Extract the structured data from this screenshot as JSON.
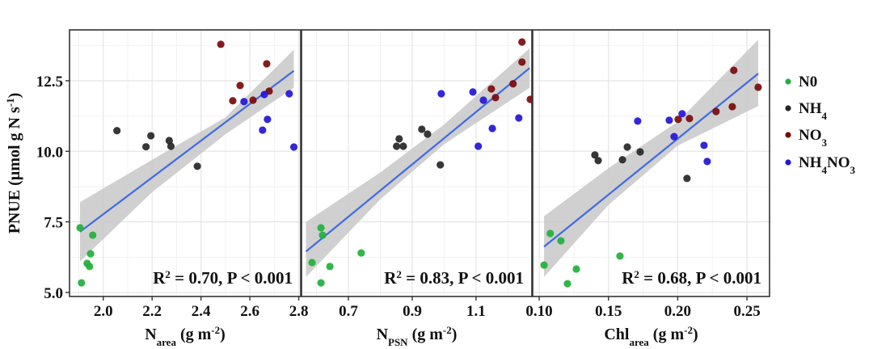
{
  "chart_data": {
    "type": "scatter",
    "ylabel": "PNUE (µmol g N s-1)",
    "ylabel_parts": {
      "main": "PNUE (µmol g N s",
      "sup": "-1",
      "end": ")"
    },
    "ylim": [
      4.857,
      14.3
    ],
    "yticks": [
      5.0,
      7.5,
      10.0,
      12.5
    ],
    "ytick_labels": [
      "5.0",
      "7.5",
      "10.0",
      "12.5"
    ],
    "grid": true,
    "legend_position": "right",
    "legend": [
      {
        "key": "N0",
        "label_main": "N0",
        "label_sub": "",
        "label_tail": "",
        "label_sub2": "",
        "color": "#22b03a"
      },
      {
        "key": "NH4",
        "label_main": "NH",
        "label_sub": "4",
        "label_tail": "",
        "label_sub2": "",
        "color": "#262626"
      },
      {
        "key": "NO3",
        "label_main": "NO",
        "label_sub": "3",
        "label_tail": "",
        "label_sub2": "",
        "color": "#7a0a0a"
      },
      {
        "key": "NH4NO3",
        "label_main": "NH",
        "label_sub": "4",
        "label_tail": "NO",
        "label_sub2": "3",
        "color": "#2414d8"
      }
    ],
    "fit_color": "#3d6be6",
    "band_color": "#c8c8c8",
    "panels": [
      {
        "xlabel": "Narea (g m-2)",
        "xlabel_parts": {
          "main": "N",
          "sub": "area",
          "rest": " (g m",
          "sup": "-2",
          "end": ")"
        },
        "xlim": [
          1.862,
          2.808
        ],
        "xticks": [
          2.0,
          2.2,
          2.4,
          2.6,
          2.8
        ],
        "xtick_labels": [
          "2.0",
          "2.2",
          "2.4",
          "2.6",
          "2.8"
        ],
        "annotation": {
          "r2_label": "R",
          "r2_sup": "2",
          "text": " = 0.70, P < 0.001"
        },
        "fit": {
          "x": [
            1.905,
            2.78
          ],
          "y": [
            7.15,
            12.85
          ]
        },
        "band": {
          "x": [
            1.905,
            2.2,
            2.5,
            2.78
          ],
          "lower": [
            6.1,
            8.55,
            10.6,
            12.25
          ],
          "upper": [
            8.2,
            9.7,
            11.2,
            13.6
          ]
        },
        "series": [
          {
            "name": "N0",
            "x": [
              1.905,
              1.957,
              1.948,
              1.934,
              1.944,
              1.911
            ],
            "y": [
              7.29,
              7.03,
              6.37,
              6.03,
              5.92,
              5.34
            ]
          },
          {
            "name": "NH4",
            "x": [
              2.056,
              2.175,
              2.195,
              2.27,
              2.277,
              2.385
            ],
            "y": [
              10.73,
              10.16,
              10.55,
              10.38,
              10.18,
              9.47
            ]
          },
          {
            "name": "NO3",
            "x": [
              2.481,
              2.56,
              2.53,
              2.613,
              2.669,
              2.679
            ],
            "y": [
              13.79,
              12.33,
              11.79,
              11.81,
              13.1,
              12.13
            ]
          },
          {
            "name": "NH4NO3",
            "x": [
              2.576,
              2.659,
              2.761,
              2.672,
              2.652,
              2.78
            ],
            "y": [
              11.76,
              12.01,
              12.04,
              11.13,
              10.75,
              10.15
            ]
          }
        ]
      },
      {
        "xlabel": "NPSN (g m-2)",
        "xlabel_parts": {
          "main": "N",
          "sub": "PSN",
          "rest": " (g m",
          "sup": "-2",
          "end": ")"
        },
        "xlim": [
          0.553,
          1.275
        ],
        "xticks": [
          0.7,
          0.9,
          1.1
        ],
        "xtick_labels": [
          "0.7",
          "0.9",
          "1.1"
        ],
        "annotation": {
          "r2_label": "R",
          "r2_sup": "2",
          "text": " = 0.83, P < 0.001"
        },
        "fit": {
          "x": [
            0.567,
            1.268
          ],
          "y": [
            6.45,
            12.95
          ]
        },
        "band": {
          "x": [
            0.567,
            0.8,
            1.0,
            1.268
          ],
          "lower": [
            5.55,
            8.3,
            10.25,
            12.25
          ],
          "upper": [
            7.5,
            9.25,
            10.95,
            13.65
          ]
        },
        "series": [
          {
            "name": "N0",
            "x": [
              0.586,
              0.614,
              0.619,
              0.642,
              0.614,
              0.74
            ],
            "y": [
              6.06,
              7.29,
              7.03,
              5.92,
              5.34,
              6.4
            ]
          },
          {
            "name": "NH4",
            "x": [
              0.859,
              0.851,
              0.872,
              0.93,
              0.948,
              0.988
            ],
            "y": [
              10.44,
              10.18,
              10.18,
              10.78,
              10.61,
              9.52
            ]
          },
          {
            "name": "NO3",
            "x": [
              1.244,
              1.244,
              1.216,
              1.148,
              1.161,
              1.27
            ],
            "y": [
              13.87,
              13.16,
              12.39,
              12.21,
              11.9,
              11.84
            ]
          },
          {
            "name": "NH4NO3",
            "x": [
              0.991,
              1.09,
              1.123,
              1.151,
              1.107,
              1.234
            ],
            "y": [
              12.04,
              12.1,
              11.81,
              10.81,
              10.18,
              11.18
            ]
          }
        ]
      },
      {
        "xlabel": "Chlarea (g m-2)",
        "xlabel_parts": {
          "main": "Chl",
          "sub": "area",
          "rest": " (g m",
          "sup": "-2",
          "end": ")"
        },
        "xlim": [
          0.0953,
          0.2663
        ],
        "xticks": [
          0.1,
          0.15,
          0.2,
          0.25
        ],
        "xtick_labels": [
          "0.10",
          "0.15",
          "0.20",
          "0.25"
        ],
        "annotation": {
          "r2_label": "R",
          "r2_sup": "2",
          "text": " = 0.68, P < 0.001"
        },
        "fit": {
          "x": [
            0.1035,
            0.2581
          ],
          "y": [
            6.62,
            12.75
          ]
        },
        "band": {
          "x": [
            0.1035,
            0.15,
            0.2,
            0.2581
          ],
          "lower": [
            5.55,
            8.1,
            10.2,
            11.6
          ],
          "upper": [
            7.7,
            9.4,
            11.05,
            13.95
          ]
        },
        "series": [
          {
            "name": "N0",
            "x": [
              0.1035,
              0.108,
              0.1157,
              0.1204,
              0.1268,
              0.1583
            ],
            "y": [
              5.97,
              7.09,
              6.83,
              5.31,
              5.83,
              6.29
            ]
          },
          {
            "name": "NH4",
            "x": [
              0.1402,
              0.1426,
              0.1601,
              0.1636,
              0.1729,
              0.2067
            ],
            "y": [
              9.87,
              9.67,
              9.7,
              10.15,
              9.98,
              9.04
            ]
          },
          {
            "name": "NO3",
            "x": [
              0.2003,
              0.2085,
              0.2277,
              0.2394,
              0.2405,
              0.2581
            ],
            "y": [
              11.13,
              11.16,
              11.41,
              11.58,
              12.87,
              12.27
            ]
          },
          {
            "name": "NH4NO3",
            "x": [
              0.1711,
              0.1939,
              0.2032,
              0.1974,
              0.219,
              0.2213
            ],
            "y": [
              11.07,
              11.1,
              11.33,
              10.52,
              10.21,
              9.64
            ]
          }
        ]
      }
    ]
  }
}
